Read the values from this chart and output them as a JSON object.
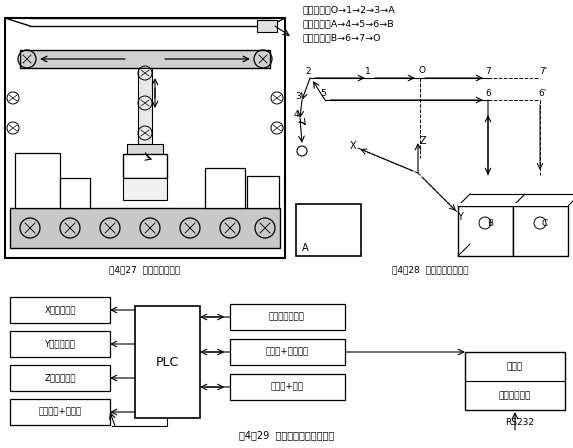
{
  "title_fig29": "图4－29  码垛机测控系统结构图",
  "title_fig27": "图4－27  码垛机结构示意",
  "title_fig28": "图4－28  码垛动作轨迹示意",
  "route_text1": "取货路线：O→1→2→3→A",
  "route_text2": "搬货路线：A→4→5→6→B",
  "route_text3": "返回路线：B→6→7→O",
  "box_left": [
    "X轴伺服电机",
    "Y轴伺服电机",
    "Z轴伺服电机",
    "交流电机+变频器"
  ],
  "box_right": [
    "系列位置传感器",
    "电磁阀+旋转气缸",
    "电磁阀+吸盘"
  ],
  "box_far_right_top": "触摸屏",
  "box_far_right_bottom": "上位监控软件",
  "box_center": "PLC",
  "rs232_label": "RS232",
  "bg_color": "#ffffff",
  "line_color": "#000000"
}
